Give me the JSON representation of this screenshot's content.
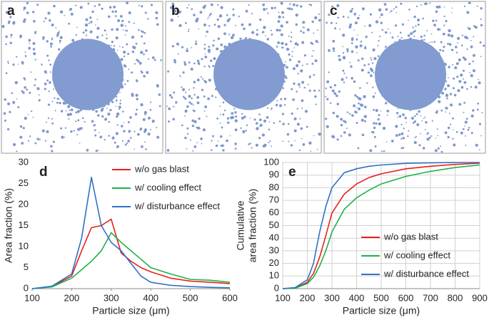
{
  "panels": [
    {
      "label": "a"
    },
    {
      "label": "b"
    },
    {
      "label": "c"
    }
  ],
  "chart_data": [
    {
      "type": "line",
      "label": "d",
      "xlabel": "Particle size (μm)",
      "ylabel": "Area fraction (%)",
      "x": [
        100,
        150,
        200,
        225,
        250,
        275,
        300,
        325,
        350,
        375,
        400,
        450,
        500,
        550,
        600
      ],
      "xlim": [
        100,
        600
      ],
      "xticks": [
        100,
        200,
        300,
        400,
        500,
        600
      ],
      "ylim": [
        0,
        30
      ],
      "yticks": [
        0,
        5,
        10,
        15,
        20,
        25,
        30
      ],
      "grid": false,
      "legend": "top-right",
      "series": [
        {
          "name": "w/o gas blast",
          "color": "#e8211b",
          "values": [
            0,
            0.5,
            3,
            9,
            14.5,
            15,
            16.5,
            8.5,
            6.5,
            5,
            4,
            2.5,
            1.8,
            1.5,
            1.2
          ]
        },
        {
          "name": "w/ cooling effect",
          "color": "#1db24b",
          "values": [
            0,
            0.4,
            2.5,
            4.5,
            6.5,
            9,
            13.3,
            11,
            9,
            7,
            5,
            3.5,
            2.2,
            2,
            1.5
          ]
        },
        {
          "name": "w/ disturbance effect",
          "color": "#2f72c4",
          "values": [
            0,
            0.6,
            3.5,
            12,
            26.5,
            15,
            11,
            9,
            6,
            3,
            1.5,
            0.8,
            0.5,
            0.3,
            0.2
          ]
        }
      ]
    },
    {
      "type": "line",
      "label": "e",
      "xlabel": "Particle size (μm)",
      "ylabel": [
        "Cumulative",
        "area fraction (%)"
      ],
      "x": [
        100,
        150,
        200,
        225,
        250,
        275,
        300,
        350,
        400,
        450,
        500,
        600,
        700,
        800,
        900
      ],
      "xlim": [
        100,
        900
      ],
      "xticks": [
        100,
        200,
        300,
        400,
        500,
        600,
        700,
        800,
        900
      ],
      "ylim": [
        0,
        100
      ],
      "yticks": [
        0,
        10,
        20,
        30,
        40,
        50,
        60,
        70,
        80,
        90,
        100
      ],
      "grid": true,
      "legend": "bottom-right",
      "series": [
        {
          "name": "w/o gas blast",
          "color": "#e8211b",
          "values": [
            0,
            0.5,
            5,
            12,
            25,
            42,
            60,
            75,
            83,
            88,
            91,
            95,
            97,
            98.5,
            99.5
          ]
        },
        {
          "name": "w/ cooling effect",
          "color": "#1db24b",
          "values": [
            0,
            0.3,
            4,
            9,
            18,
            30,
            45,
            63,
            72,
            78,
            83,
            89,
            93,
            96,
            98
          ]
        },
        {
          "name": "w/ disturbance effect",
          "color": "#2f72c4",
          "values": [
            0,
            0.8,
            7,
            20,
            45,
            65,
            80,
            92,
            95,
            97,
            98,
            99.3,
            99.8,
            100,
            100
          ]
        }
      ]
    }
  ]
}
